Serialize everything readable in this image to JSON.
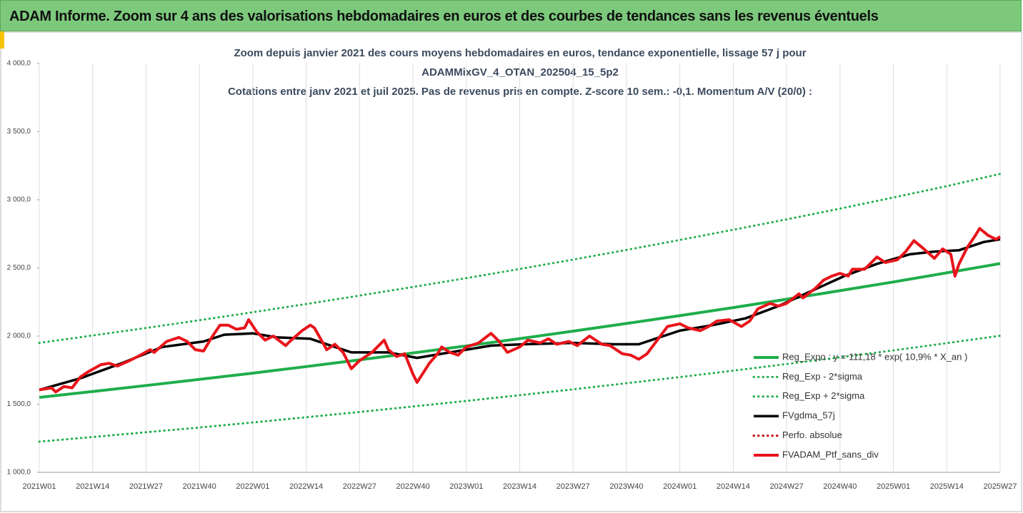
{
  "header": {
    "title": "ADAM Informe. Zoom sur 4 ans des valorisations hebdomadaires en euros et des courbes de tendances sans les revenus éventuels"
  },
  "chart_data": {
    "type": "line",
    "title": [
      "Zoom depuis janvier 2021 des cours moyens hebdomadaires  en euros, tendance exponentielle, lissage 57 j pour",
      "ADAMMixGV_4_OTAN_202504_15_5p2",
      "Cotations entre janv 2021 et juil 2025. Pas de revenus pris en compte. Z-score 10 sem.: -0,1. Momentum A/V (20/0) :"
    ],
    "xlim": [
      0,
      234
    ],
    "xticks": [
      {
        "value": 0,
        "label": "2021W01"
      },
      {
        "value": 13,
        "label": "2021W14"
      },
      {
        "value": 26,
        "label": "2021W27"
      },
      {
        "value": 39,
        "label": "2021W40"
      },
      {
        "value": 52,
        "label": "2022W01"
      },
      {
        "value": 65,
        "label": "2022W14"
      },
      {
        "value": 78,
        "label": "2022W27"
      },
      {
        "value": 91,
        "label": "2022W40"
      },
      {
        "value": 104,
        "label": "2023W01"
      },
      {
        "value": 117,
        "label": "2023W14"
      },
      {
        "value": 130,
        "label": "2023W27"
      },
      {
        "value": 143,
        "label": "2023W40"
      },
      {
        "value": 156,
        "label": "2024W01"
      },
      {
        "value": 169,
        "label": "2024W14"
      },
      {
        "value": 182,
        "label": "2024W27"
      },
      {
        "value": 195,
        "label": "2024W40"
      },
      {
        "value": 208,
        "label": "2025W01"
      },
      {
        "value": 221,
        "label": "2025W14"
      },
      {
        "value": 234,
        "label": "2025W27"
      }
    ],
    "ylim": [
      1000,
      4000
    ],
    "yticks": [
      {
        "value": 1000,
        "label": "1 000,0"
      },
      {
        "value": 1500,
        "label": "1 500,0"
      },
      {
        "value": 2000,
        "label": "2 000,0"
      },
      {
        "value": 2500,
        "label": "2 500,0"
      },
      {
        "value": 3000,
        "label": "3 000,0"
      },
      {
        "value": 3500,
        "label": "3 500,0"
      },
      {
        "value": 4000,
        "label": "4 000,0"
      }
    ],
    "grid": "x",
    "series": [
      {
        "name": "Reg_Expo : y = 111,18 * exp( 10,9% *  X_an )",
        "color": "#1fae4b",
        "dash": "solid",
        "x": [
          0,
          13,
          26,
          39,
          52,
          65,
          78,
          91,
          104,
          117,
          130,
          143,
          156,
          169,
          182,
          195,
          208,
          221,
          234
        ],
        "values": [
          1550,
          1593,
          1637,
          1682,
          1728,
          1776,
          1825,
          1876,
          1928,
          1981,
          2036,
          2092,
          2150,
          2209,
          2270,
          2333,
          2397,
          2464,
          2532
        ]
      },
      {
        "name": "Reg_Exp - 2*sigma",
        "color": "#1fae4b",
        "dash": "dotted",
        "x": [
          0,
          13,
          26,
          39,
          52,
          65,
          78,
          91,
          104,
          117,
          130,
          143,
          156,
          169,
          182,
          195,
          208,
          221,
          234
        ],
        "values": [
          1225,
          1259,
          1294,
          1329,
          1366,
          1404,
          1443,
          1483,
          1524,
          1566,
          1609,
          1654,
          1699,
          1746,
          1795,
          1844,
          1895,
          1948,
          2002
        ]
      },
      {
        "name": "Reg_Exp + 2*sigma",
        "color": "#1fae4b",
        "dash": "dotted",
        "x": [
          0,
          13,
          26,
          39,
          52,
          65,
          78,
          91,
          104,
          117,
          130,
          143,
          156,
          169,
          182,
          195,
          208,
          221,
          234
        ],
        "values": [
          1950,
          2004,
          2059,
          2116,
          2175,
          2235,
          2297,
          2360,
          2425,
          2492,
          2561,
          2632,
          2705,
          2780,
          2856,
          2935,
          3017,
          3100,
          3190
        ]
      },
      {
        "name": "FVgdma_57j",
        "color": "#000000",
        "dash": "solid",
        "x": [
          0,
          10,
          20,
          30,
          40,
          45,
          52,
          58,
          66,
          72,
          76,
          85,
          92,
          100,
          110,
          118,
          130,
          140,
          146,
          150,
          156,
          164,
          172,
          180,
          188,
          196,
          204,
          212,
          218,
          224,
          230,
          234
        ],
        "values": [
          1605,
          1690,
          1800,
          1920,
          1960,
          2010,
          2020,
          1990,
          1980,
          1920,
          1880,
          1880,
          1840,
          1880,
          1930,
          1940,
          1950,
          1940,
          1940,
          1980,
          2040,
          2080,
          2130,
          2220,
          2330,
          2440,
          2530,
          2600,
          2620,
          2630,
          2690,
          2710
        ]
      },
      {
        "name": "Perfo. absolue",
        "color": "#c00000",
        "dash": "dotted",
        "x": [],
        "values": []
      },
      {
        "name": "FVADAM_Ptf_sans_div",
        "color": "#e8141b",
        "dash": "solid",
        "x": [
          0,
          3,
          4,
          6,
          8,
          10,
          12,
          15,
          17,
          19,
          22,
          24,
          27,
          28,
          31,
          34,
          36,
          38,
          40,
          42,
          44,
          46,
          48,
          50,
          51,
          53,
          55,
          57,
          60,
          61,
          64,
          66,
          67,
          70,
          72,
          74,
          76,
          78,
          81,
          84,
          85,
          87,
          89,
          91,
          92,
          95,
          97,
          98,
          100,
          102,
          104,
          107,
          110,
          112,
          114,
          117,
          119,
          122,
          124,
          126,
          129,
          131,
          134,
          137,
          139,
          142,
          144,
          146,
          148,
          151,
          153,
          156,
          158,
          161,
          163,
          165,
          168,
          171,
          173,
          175,
          178,
          180,
          182,
          185,
          186,
          189,
          191,
          193,
          195,
          197,
          198,
          201,
          204,
          206,
          209,
          211,
          213,
          215,
          218,
          220,
          222,
          223,
          224,
          226,
          228,
          229,
          231,
          233,
          234
        ],
        "values": [
          1605,
          1620,
          1590,
          1630,
          1620,
          1700,
          1740,
          1790,
          1800,
          1780,
          1820,
          1850,
          1900,
          1880,
          1960,
          1990,
          1960,
          1900,
          1890,
          1990,
          2080,
          2080,
          2050,
          2060,
          2120,
          2030,
          1970,
          2000,
          1930,
          1960,
          2040,
          2080,
          2060,
          1900,
          1940,
          1880,
          1760,
          1820,
          1880,
          1970,
          1900,
          1850,
          1870,
          1720,
          1660,
          1800,
          1870,
          1920,
          1880,
          1860,
          1920,
          1950,
          2020,
          1960,
          1880,
          1920,
          1970,
          1950,
          1980,
          1940,
          1960,
          1930,
          2000,
          1940,
          1930,
          1870,
          1860,
          1830,
          1870,
          1990,
          2070,
          2090,
          2060,
          2040,
          2070,
          2110,
          2120,
          2070,
          2110,
          2200,
          2240,
          2220,
          2240,
          2310,
          2280,
          2350,
          2410,
          2440,
          2460,
          2440,
          2490,
          2490,
          2580,
          2540,
          2560,
          2620,
          2700,
          2650,
          2570,
          2640,
          2600,
          2440,
          2530,
          2650,
          2740,
          2790,
          2740,
          2710,
          2730
        ]
      }
    ]
  }
}
